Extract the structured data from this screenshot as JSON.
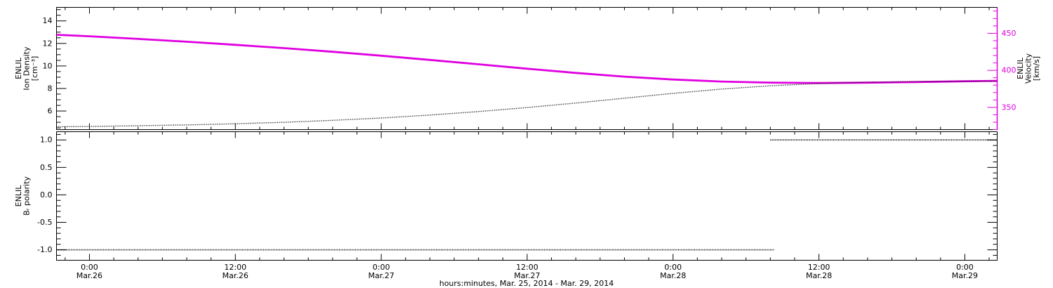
{
  "xaxis_title": "hours:minutes, Mar. 25, 2014 - Mar. 29, 2014",
  "colors": {
    "velocity_magenta": "#e000e0",
    "series_black": "#000000",
    "background": "#ffffff"
  },
  "chart_data": [
    {
      "type": "line",
      "panel": "top",
      "title": "",
      "xlim": [
        -2.71,
        74.66
      ],
      "x_unit": "hours since Mar 26 00:00, 2014",
      "x_major_ticks": [
        0,
        12,
        24,
        36,
        48,
        60,
        72
      ],
      "x_minor_step": 2,
      "x_tick_time_labels": [
        "0:00",
        "12:00",
        "0:00",
        "12:00",
        "0:00",
        "12:00",
        "0:00"
      ],
      "x_tick_date_labels": [
        "Mar.26",
        "Mar.26",
        "Mar.27",
        "Mar.27",
        "Mar.28",
        "Mar.28",
        "Mar.29"
      ],
      "grid": false,
      "left_axis": {
        "label_lines": [
          "ENLIL",
          "Ion Density",
          "[cm⁻³]"
        ],
        "ylim": [
          4.35,
          15.2
        ],
        "major_ticks": [
          6,
          8,
          10,
          12,
          14
        ],
        "tick_labels": [
          "6",
          "8",
          "10",
          "12",
          "14"
        ],
        "minor_step": 0.5,
        "color": "#000000"
      },
      "right_axis": {
        "label_lines": [
          "ENLIL",
          "Velocity",
          "[km/s]"
        ],
        "ylim": [
          320,
          485
        ],
        "major_ticks": [
          350,
          400,
          450
        ],
        "tick_labels": [
          "350",
          "400",
          "450"
        ],
        "minor_step": 10,
        "color": "#e000e0"
      },
      "series": [
        {
          "name": "velocity",
          "axis": "right",
          "color": "#e000e0",
          "width": 2.8,
          "dash": "",
          "points": [
            [
              -2.71,
              448
            ],
            [
              0,
              446
            ],
            [
              4,
              442.4
            ],
            [
              8,
              438.6
            ],
            [
              12,
              434.5
            ],
            [
              16,
              430
            ],
            [
              20,
              425.1
            ],
            [
              24,
              419.8
            ],
            [
              28,
              414.1
            ],
            [
              32,
              408.2
            ],
            [
              36,
              402.2
            ],
            [
              40,
              396.5
            ],
            [
              44,
              391.5
            ],
            [
              48,
              387.6
            ],
            [
              52,
              384.9
            ],
            [
              56,
              383.4
            ],
            [
              60,
              382.9
            ],
            [
              64,
              383.3
            ],
            [
              68,
              384.2
            ],
            [
              72,
              385.2
            ],
            [
              74.66,
              385.8
            ]
          ]
        },
        {
          "name": "ion-density",
          "axis": "left",
          "color": "#000000",
          "width": 1.4,
          "dash": "1 1.6",
          "points": [
            [
              -2.71,
              4.6
            ],
            [
              0,
              4.63
            ],
            [
              4,
              4.69
            ],
            [
              8,
              4.77
            ],
            [
              12,
              4.87
            ],
            [
              16,
              5.0
            ],
            [
              20,
              5.17
            ],
            [
              24,
              5.38
            ],
            [
              28,
              5.64
            ],
            [
              32,
              5.95
            ],
            [
              36,
              6.31
            ],
            [
              40,
              6.71
            ],
            [
              44,
              7.14
            ],
            [
              48,
              7.57
            ],
            [
              52,
              7.95
            ],
            [
              56,
              8.24
            ],
            [
              60,
              8.44
            ],
            [
              64,
              8.55
            ],
            [
              68,
              8.61
            ],
            [
              72,
              8.64
            ],
            [
              74.66,
              8.65
            ]
          ]
        }
      ]
    },
    {
      "type": "line",
      "panel": "bottom",
      "title": "",
      "grid": false,
      "mirror_right": true,
      "left_axis": {
        "label_lines": [
          "ENLIL",
          "Bᵣ polarity"
        ],
        "ylim": [
          -1.19,
          1.15
        ],
        "major_ticks": [
          -1.0,
          -0.5,
          0.0,
          0.5,
          1.0
        ],
        "tick_labels": [
          "-1.0",
          "-0.5",
          "0.0",
          "0.5",
          "1.0"
        ],
        "minor_step": 0.1,
        "color": "#000000"
      },
      "series": [
        {
          "name": "br-polarity-negative",
          "axis": "left",
          "color": "#000000",
          "width": 1.8,
          "dash": "1 1.3",
          "points": [
            [
              -2.71,
              -1
            ],
            [
              56.3,
              -1
            ]
          ]
        },
        {
          "name": "br-polarity-positive",
          "axis": "left",
          "color": "#000000",
          "width": 1.8,
          "dash": "1 1.3",
          "points": [
            [
              56.0,
              1
            ],
            [
              74.66,
              1
            ]
          ]
        }
      ]
    }
  ]
}
